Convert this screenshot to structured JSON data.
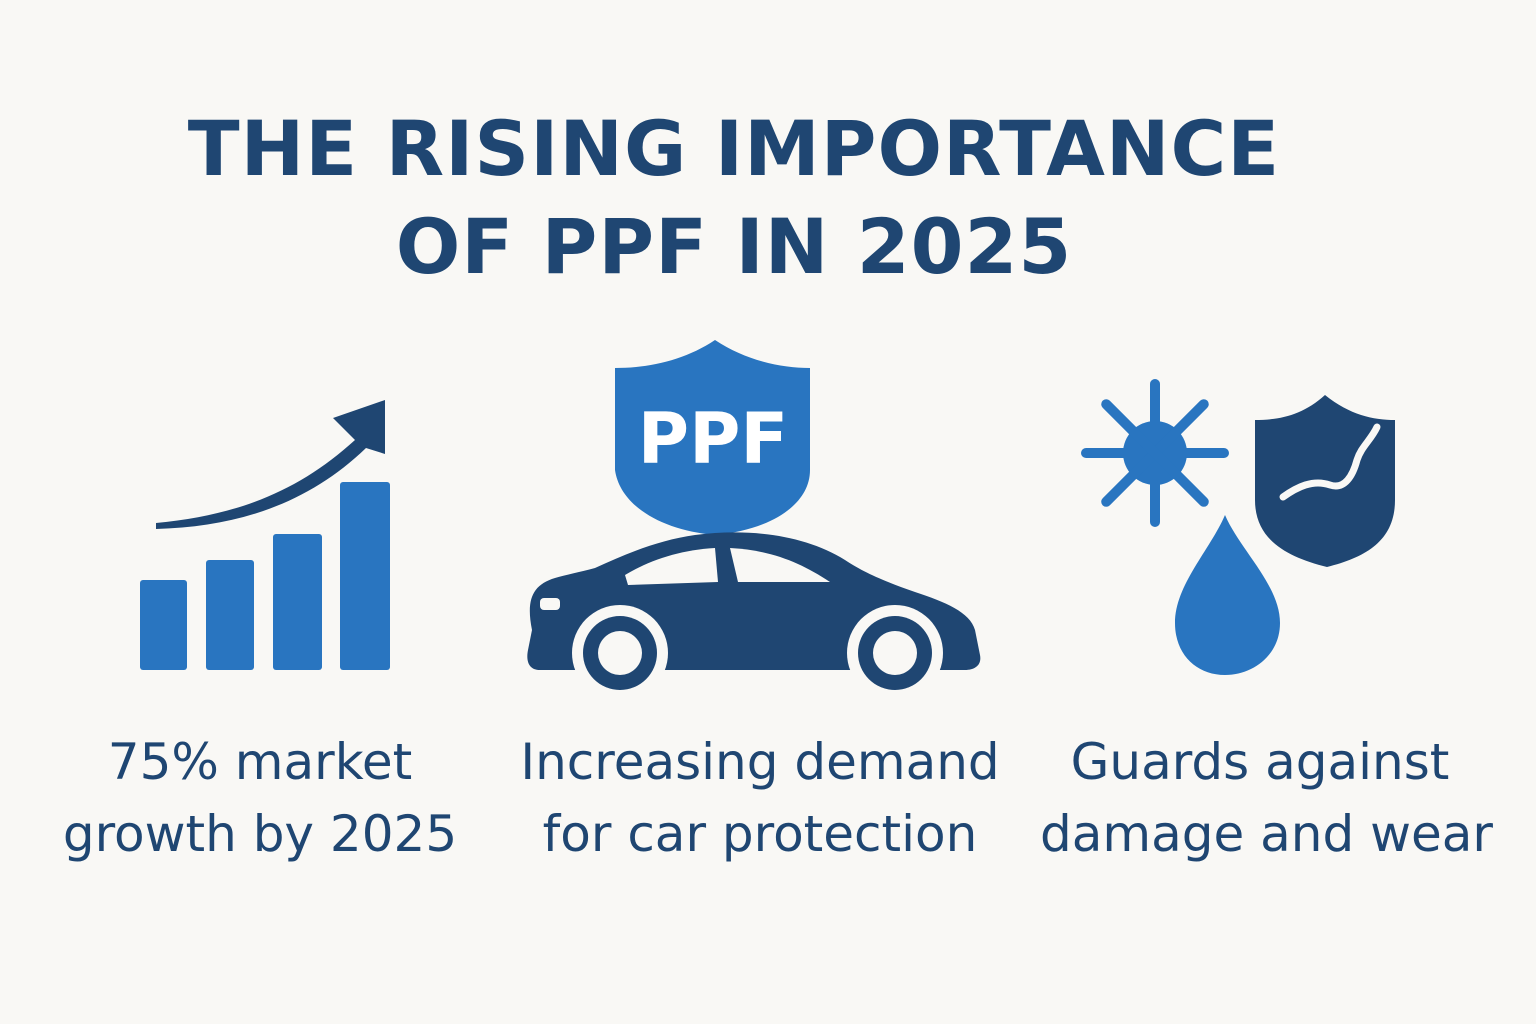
{
  "title": {
    "line1": "THE RISING IMPORTANCE",
    "line2": "OF PPF IN 2025"
  },
  "colors": {
    "background": "#f9f8f5",
    "navy": "#1f4672",
    "blue": "#2975c0"
  },
  "panels": [
    {
      "icon": "growth-bar-chart-icon",
      "line1": "75% market",
      "line2": "growth by 2025"
    },
    {
      "icon": "car-with-ppf-shield-icon",
      "badge": "PPF",
      "line1": "Increasing demand",
      "line2": "for car protection"
    },
    {
      "icon": "sun-drop-shield-icon",
      "line1": "Guards against",
      "line2": "damage and wear"
    }
  ]
}
